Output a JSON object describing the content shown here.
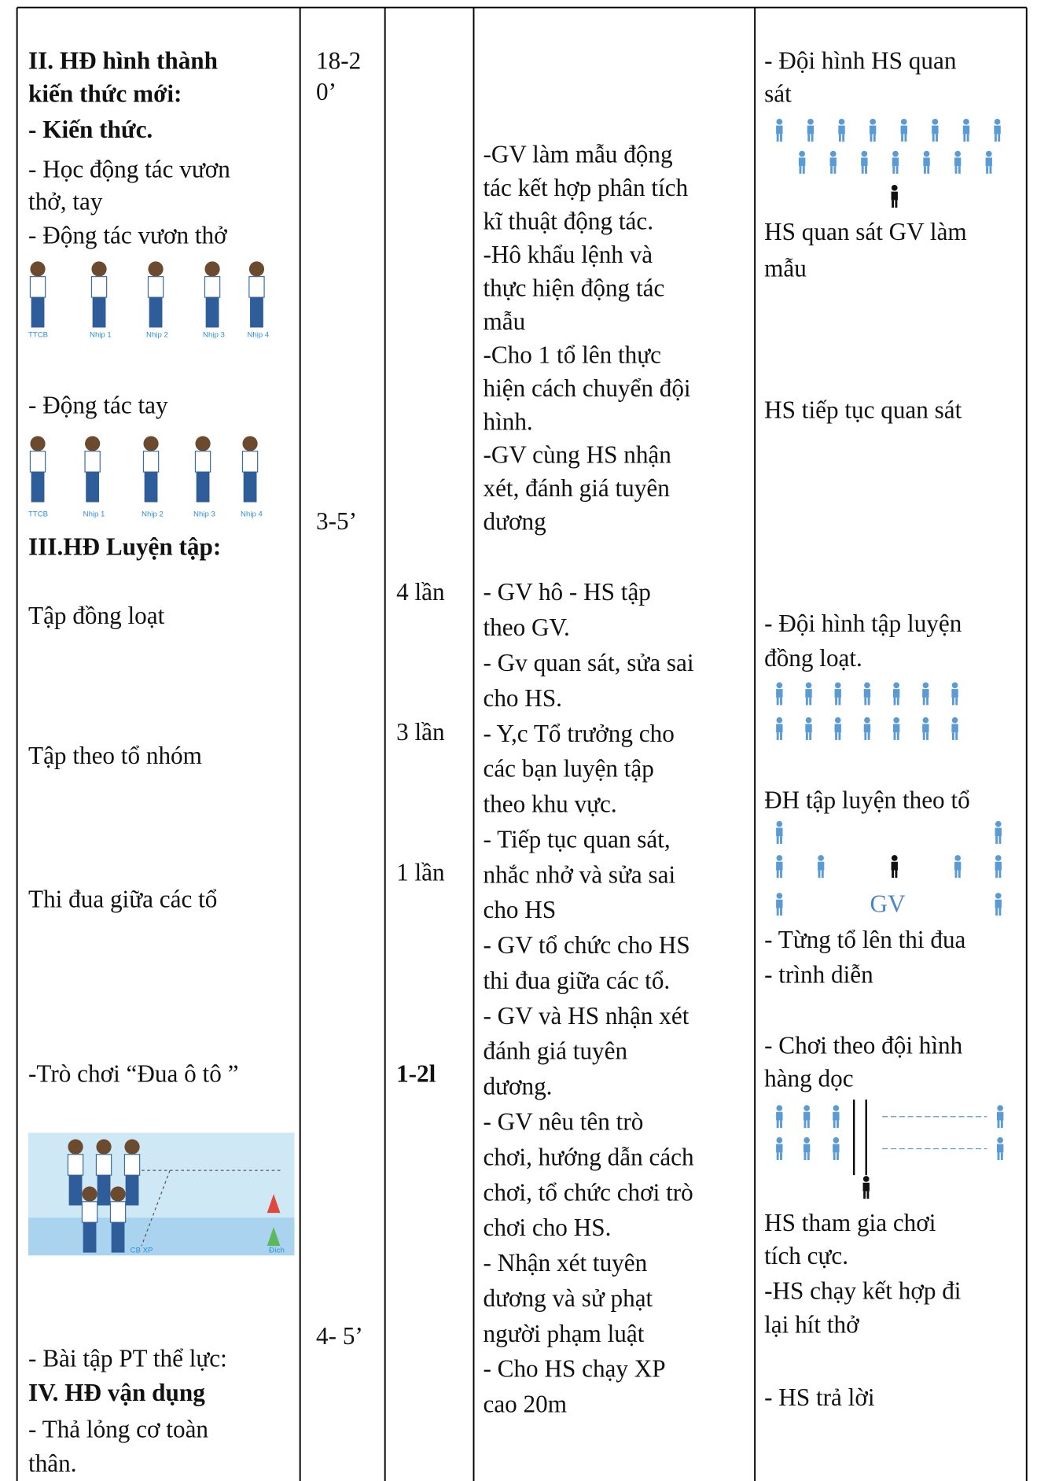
{
  "content": {
    "col1": [
      "II. HĐ hình thành",
      "kiến thức mới:",
      "- Kiến thức.",
      "- Học động tác vươn",
      "thở, tay",
      "- Động tác vươn thở",
      "- Động tác tay",
      "III.HĐ Luyện tập:",
      "Tập đồng loạt",
      "Tập theo tổ nhóm",
      "Thi đua giữa các tổ",
      "-Trò chơi “Đua ô tô ”",
      "- Bài tập PT thể lực:",
      "IV. HĐ vận dụng",
      "-  Thả lỏng cơ toàn",
      "thân."
    ],
    "figure1_labels": [
      "TTCB",
      "Nhịp 1",
      "Nhịp 2",
      "Nhịp 3",
      "Nhịp 4"
    ],
    "figure2_labels": [
      "TTCB",
      "Nhịp 1",
      "Nhịp 2",
      "Nhịp 3",
      "Nhịp 4"
    ],
    "game_labels": [
      "CB XP",
      "Đích"
    ],
    "col2": [
      "18-2",
      "0’",
      "3-5’",
      "4- 5’"
    ],
    "col3": [
      "4 lần",
      "3 lần",
      "1 lần",
      "1-2l"
    ],
    "col4": [
      "-GV làm mẫu động",
      "tác kết hợp phân tích",
      "kĩ thuật động tác.",
      "-Hô khẩu lệnh và",
      "thực hiện động tác",
      "mẫu",
      "-Cho 1 tổ lên thực",
      "hiện cách chuyển đội",
      "hình.",
      "-GV cùng HS nhận",
      "xét, đánh giá tuyên",
      "dương",
      "- GV hô - HS tập",
      "theo GV.",
      "- Gv quan sát, sửa sai",
      "cho HS.",
      "- Y,c Tổ trưởng cho",
      "các bạn luyện tập",
      "theo khu vực.",
      "- Tiếp tục quan sát,",
      "nhắc nhở và sửa sai",
      "cho HS",
      "- GV tổ chức cho HS",
      "thi đua giữa các tổ.",
      "- GV và HS nhận xét",
      "đánh giá tuyên",
      "dương.",
      "- GV nêu tên trò",
      "chơi, hướng dẫn cách",
      "chơi, tổ chức chơi trò",
      "chơi cho HS.",
      "- Nhận xét tuyên",
      "dương và sử phạt",
      "người phạm luật",
      "- Cho HS chạy XP",
      "cao 20m"
    ],
    "col5": [
      "- Đội hình HS quan",
      "sát",
      "HS quan sát GV làm",
      "mẫu",
      "HS tiếp tục quan sát",
      "- Đội hình tập luyện",
      "đồng loạt.",
      "ĐH tập luyện theo tổ",
      "- Từng tổ  lên  thi đua",
      "- trình diễn",
      "- Chơi theo đội hình",
      "hàng dọc",
      "HS tham gia chơi",
      "tích cực.",
      "-HS chạy kết hợp đi",
      "lại hít thở",
      "- HS trả lời"
    ],
    "diagram_label": "GV"
  }
}
